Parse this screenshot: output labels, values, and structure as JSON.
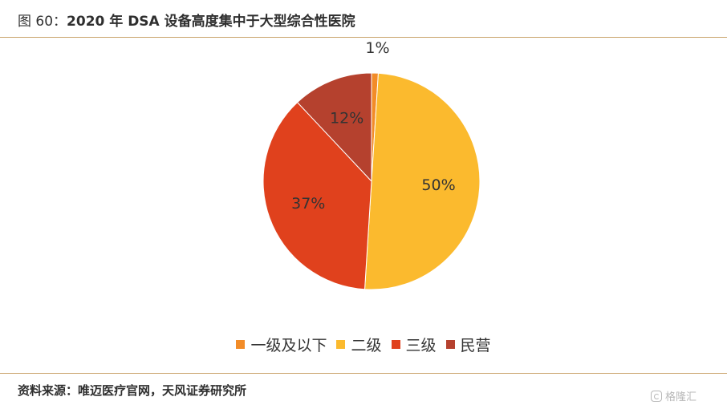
{
  "header": {
    "figure_number": "图 60：",
    "title": "2020 年 DSA 设备高度集中于大型综合性医院"
  },
  "chart_data": {
    "type": "pie",
    "title": "2020 年 DSA 设备高度集中于大型综合性医院",
    "categories": [
      "一级及以下",
      "二级",
      "三级",
      "民营"
    ],
    "values": [
      1,
      50,
      37,
      12
    ],
    "labels": [
      "1%",
      "50%",
      "37%",
      "12%"
    ],
    "colors": [
      "#F28C28",
      "#FBBA2E",
      "#E0411D",
      "#B5412E"
    ],
    "start": "top, clockwise",
    "legend_position": "bottom"
  },
  "footer": {
    "source": "资料来源：唯迈医疗官网，天风证券研究所"
  },
  "watermark": {
    "icon": "gelonghui-logo-icon",
    "text": "格隆汇"
  }
}
